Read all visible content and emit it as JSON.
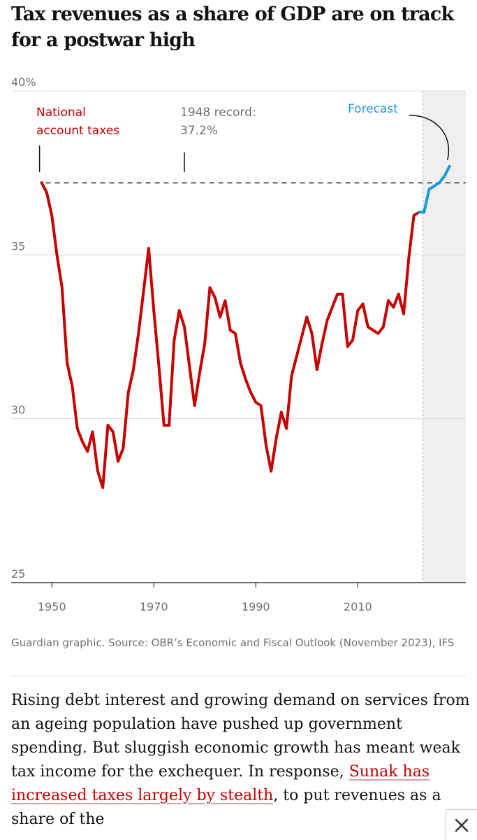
{
  "article": {
    "headline": "Tax revenues as a share of GDP are on track for a postwar high",
    "source": "Guardian graphic. Source: OBR’s Economic and Fiscal Outlook (November 2023), IFS",
    "body_before": "Rising debt interest and growing demand on services from an ageing population have pushed up government spending. But sluggish economic growth has meant weak tax income for the exchequer. In response, ",
    "body_link": "Sunak has increased taxes largely by stealth",
    "body_after": ", to put revenues as a share of the"
  },
  "colors": {
    "historic": "#c70000",
    "forecast": "#1b9ad6",
    "record_line": "#7a7a7a",
    "forecast_band": "#efefef",
    "text": "#121212",
    "muted": "#707070"
  },
  "chart_data": {
    "type": "line",
    "title": "Tax revenues as a share of GDP are on track for a postwar high",
    "y_unit": "%",
    "ylim": [
      25,
      40
    ],
    "y_ticks": [
      {
        "value": 40,
        "label": "40%"
      },
      {
        "value": 35,
        "label": "35"
      },
      {
        "value": 30,
        "label": "30"
      },
      {
        "value": 25,
        "label": "25"
      }
    ],
    "xlim": [
      1946,
      2029
    ],
    "x_ticks": [
      {
        "value": 1950,
        "label": "1950"
      },
      {
        "value": 1970,
        "label": "1970"
      },
      {
        "value": 1990,
        "label": "1990"
      },
      {
        "value": 2010,
        "label": "2010"
      }
    ],
    "grid": true,
    "forecast_start": 2022.8,
    "record": {
      "value": 37.2,
      "year": 1948
    },
    "series": [
      {
        "name": "National account taxes",
        "color": "#c70000",
        "x": [
          1948,
          1949,
          1950,
          1951,
          1952,
          1953,
          1954,
          1955,
          1956,
          1957,
          1958,
          1959,
          1960,
          1961,
          1962,
          1963,
          1964,
          1965,
          1966,
          1967,
          1968,
          1969,
          1970,
          1971,
          1972,
          1973,
          1974,
          1975,
          1976,
          1977,
          1978,
          1979,
          1980,
          1981,
          1982,
          1983,
          1984,
          1985,
          1986,
          1987,
          1988,
          1989,
          1990,
          1991,
          1992,
          1993,
          1994,
          1995,
          1996,
          1997,
          1998,
          1999,
          2000,
          2001,
          2002,
          2003,
          2004,
          2005,
          2006,
          2007,
          2008,
          2009,
          2010,
          2011,
          2012,
          2013,
          2014,
          2015,
          2016,
          2017,
          2018,
          2019,
          2020,
          2021,
          2022
        ],
        "values": [
          37.2,
          36.9,
          36.2,
          35.0,
          34.0,
          31.7,
          31.0,
          29.7,
          29.3,
          29.0,
          29.6,
          28.4,
          27.9,
          29.8,
          29.6,
          28.7,
          29.1,
          30.8,
          31.5,
          32.6,
          33.9,
          35.2,
          33.3,
          31.6,
          29.8,
          29.8,
          32.4,
          33.3,
          32.8,
          31.6,
          30.4,
          31.4,
          32.3,
          34.0,
          33.7,
          33.1,
          33.6,
          32.7,
          32.6,
          31.7,
          31.2,
          30.8,
          30.5,
          30.4,
          29.2,
          28.4,
          29.4,
          30.2,
          29.7,
          31.3,
          31.9,
          32.5,
          33.1,
          32.6,
          31.5,
          32.3,
          33.0,
          33.4,
          33.8,
          33.8,
          32.2,
          32.4,
          33.3,
          33.5,
          32.8,
          32.7,
          32.6,
          32.8,
          33.6,
          33.4,
          33.8,
          33.2,
          34.9,
          36.2,
          36.3
        ]
      },
      {
        "name": "Forecast",
        "color": "#1b9ad6",
        "x": [
          2022,
          2023,
          2024,
          2025,
          2026,
          2027,
          2028
        ],
        "values": [
          36.3,
          36.3,
          37.0,
          37.1,
          37.2,
          37.4,
          37.7
        ]
      }
    ],
    "annotations": [
      {
        "id": "national",
        "lines": [
          "National",
          "account taxes"
        ],
        "color": "#c70000"
      },
      {
        "id": "record",
        "lines": [
          "1948 record:",
          "37.2%"
        ],
        "color": "#707070"
      },
      {
        "id": "forecast",
        "lines": [
          "Forecast"
        ],
        "color": "#1b9ad6"
      }
    ]
  },
  "close_icon": "close-icon"
}
